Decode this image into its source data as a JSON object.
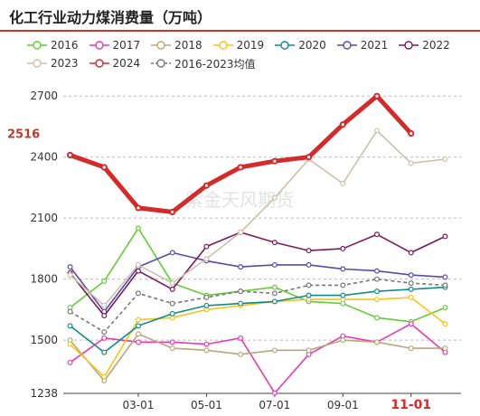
{
  "title": "化工行业动力煤消费量（万吨）",
  "watermark": "紫金天风期货",
  "colors": {
    "accent": "#c0392b"
  },
  "chart_data": {
    "type": "line",
    "title": "化工行业动力煤消费量（万吨）",
    "ylim": [
      1238,
      2750
    ],
    "yticks": [
      1238,
      1500,
      1800,
      2100,
      2400,
      2700
    ],
    "xticks": [
      {
        "label": "03-01",
        "pos": 3
      },
      {
        "label": "05-01",
        "pos": 5
      },
      {
        "label": "07-01",
        "pos": 7
      },
      {
        "label": "09-01",
        "pos": 9
      },
      {
        "label": "11-01",
        "pos": 11
      }
    ],
    "highlight_value": "2516",
    "x": [
      1,
      1.5,
      2,
      2.5,
      3,
      3.5,
      4,
      4.5,
      5,
      5.5,
      6,
      6.5,
      7,
      7.5,
      8,
      8.5,
      9,
      9.5,
      10,
      10.5,
      11,
      11.5,
      12
    ],
    "series": [
      {
        "name": "2016",
        "color": "#66cc33",
        "x": [
          1,
          2,
          3,
          4,
          5,
          6,
          7,
          8,
          9,
          10,
          11,
          12
        ],
        "values": [
          1660,
          1790,
          2050,
          1780,
          1720,
          1740,
          1760,
          1690,
          1680,
          1610,
          1590,
          1660
        ]
      },
      {
        "name": "2017",
        "color": "#e83caa",
        "x": [
          1,
          2,
          3,
          4,
          5,
          6,
          7,
          8,
          9,
          10,
          11,
          12
        ],
        "values": [
          1390,
          1510,
          1490,
          1490,
          1480,
          1510,
          1240,
          1430,
          1520,
          1490,
          1580,
          1440
        ]
      },
      {
        "name": "2018",
        "color": "#b8a77a",
        "x": [
          1,
          2,
          3,
          4,
          5,
          6,
          7,
          8,
          9,
          10,
          11,
          12
        ],
        "values": [
          1500,
          1300,
          1530,
          1460,
          1450,
          1430,
          1450,
          1450,
          1500,
          1490,
          1460,
          1460
        ]
      },
      {
        "name": "2019",
        "color": "#f5c518",
        "x": [
          1,
          2,
          3,
          4,
          5,
          6,
          7,
          8,
          9,
          10,
          11,
          12
        ],
        "values": [
          1480,
          1320,
          1600,
          1610,
          1650,
          1670,
          1690,
          1700,
          1700,
          1700,
          1710,
          1580
        ]
      },
      {
        "name": "2020",
        "color": "#138a8a",
        "x": [
          1,
          2,
          3,
          4,
          5,
          6,
          7,
          8,
          9,
          10,
          11,
          12
        ],
        "values": [
          1570,
          1440,
          1570,
          1630,
          1670,
          1680,
          1690,
          1720,
          1720,
          1740,
          1750,
          1760
        ]
      },
      {
        "name": "2021",
        "color": "#5a4aa8",
        "x": [
          1,
          2,
          3,
          4,
          5,
          6,
          7,
          8,
          9,
          10,
          11,
          12
        ],
        "values": [
          1860,
          1640,
          1860,
          1930,
          1890,
          1860,
          1870,
          1870,
          1850,
          1840,
          1820,
          1810
        ]
      },
      {
        "name": "2022",
        "color": "#7b1a55",
        "x": [
          1,
          2,
          3,
          4,
          5,
          6,
          7,
          8,
          9,
          10,
          11,
          12
        ],
        "values": [
          1830,
          1620,
          1840,
          1750,
          1960,
          2030,
          1980,
          1940,
          1950,
          2020,
          1930,
          2010
        ]
      },
      {
        "name": "2023",
        "color": "#ccc0ad",
        "x": [
          1,
          2,
          3,
          4,
          5,
          6,
          7,
          8,
          9,
          10,
          11,
          12
        ],
        "values": [
          1820,
          1670,
          1870,
          1780,
          1900,
          2030,
          2200,
          2390,
          2270,
          2530,
          2370,
          2390
        ]
      },
      {
        "name": "2024",
        "color": "#d42a2a",
        "bold": true,
        "x": [
          1,
          2,
          3,
          4,
          5,
          6,
          7,
          8,
          9,
          10,
          11
        ],
        "values": [
          2410,
          2350,
          2150,
          2130,
          2260,
          2350,
          2380,
          2400,
          2560,
          2700,
          2516
        ]
      },
      {
        "name": "2016-2023均值",
        "color": "#777777",
        "dashed": true,
        "x": [
          1,
          2,
          3,
          4,
          5,
          6,
          7,
          8,
          9,
          10,
          11,
          12
        ],
        "values": [
          1640,
          1540,
          1730,
          1680,
          1710,
          1740,
          1730,
          1770,
          1770,
          1800,
          1780,
          1770
        ]
      }
    ]
  }
}
